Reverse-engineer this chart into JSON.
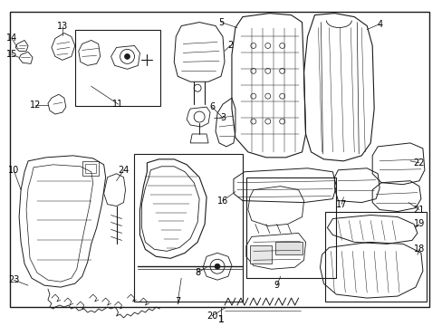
{
  "background_color": "#ffffff",
  "border_color": "#000000",
  "fig_width": 4.89,
  "fig_height": 3.6,
  "dpi": 100,
  "lc": "#1a1a1a",
  "lw": 0.6,
  "label_fontsize": 7,
  "label_color": "#000000"
}
